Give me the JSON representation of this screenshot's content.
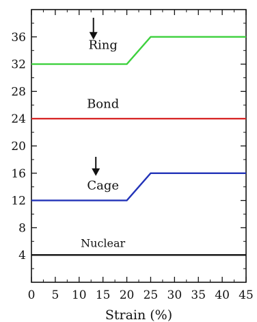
{
  "chart_data": {
    "type": "line",
    "title": "",
    "xlabel": "Strain (%)",
    "ylabel": "",
    "xlim": [
      0,
      45
    ],
    "ylim": [
      0,
      40
    ],
    "xticks": [
      0,
      5,
      10,
      15,
      20,
      25,
      30,
      35,
      40,
      45
    ],
    "yticks": [
      4,
      8,
      12,
      16,
      20,
      24,
      28,
      32,
      36
    ],
    "grid": false,
    "series": [
      {
        "label": "Ring",
        "color": "#3ed13e",
        "x": [
          0,
          20,
          25,
          45
        ],
        "y": [
          32,
          32,
          36,
          36
        ]
      },
      {
        "label": "Bond",
        "color": "#d82a2a",
        "x": [
          0,
          45
        ],
        "y": [
          24,
          24
        ]
      },
      {
        "label": "Cage",
        "color": "#2233b8",
        "x": [
          0,
          20,
          25,
          45
        ],
        "y": [
          12,
          12,
          16,
          16
        ]
      },
      {
        "label": "Nuclear",
        "color": "#111111",
        "x": [
          0,
          45
        ],
        "y": [
          4,
          4
        ]
      }
    ],
    "annotations": [
      {
        "type": "arrow",
        "label": "Ring",
        "x": 13,
        "y_top": 38.8,
        "y_tip": 35.6
      },
      {
        "type": "arrow",
        "label": "Cage",
        "x": 13.5,
        "y_top": 18.4,
        "y_tip": 15.6
      }
    ]
  }
}
